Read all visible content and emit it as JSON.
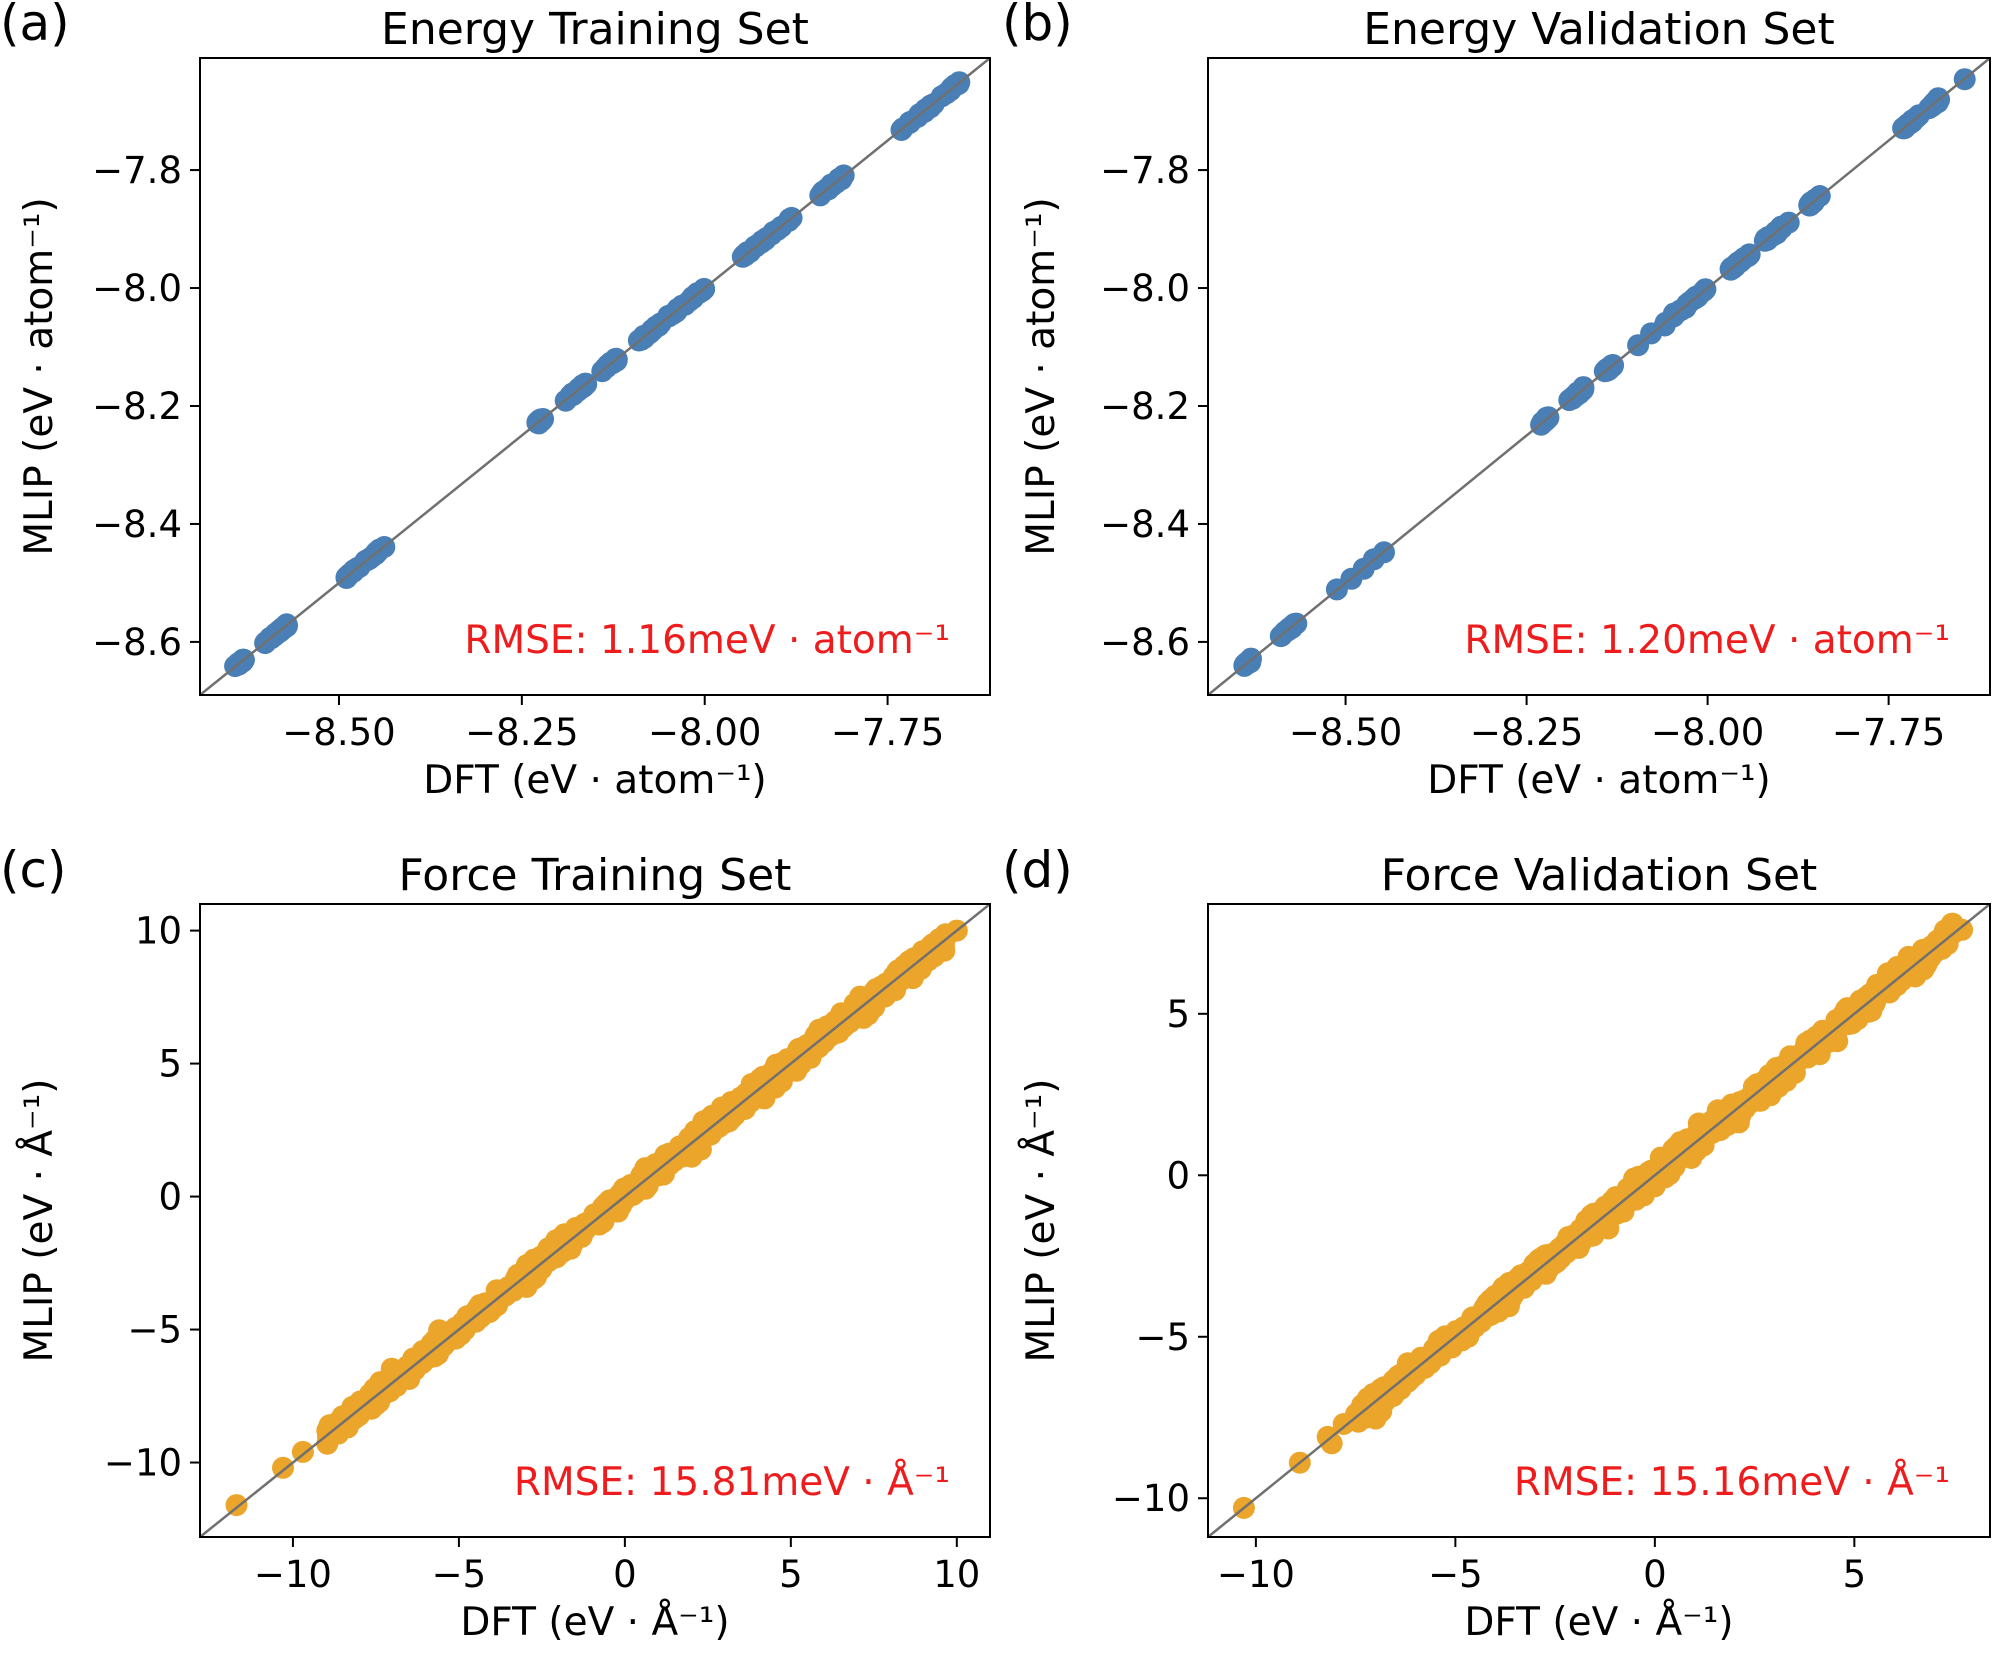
{
  "colors": {
    "energy_points": "#4a7fb5",
    "force_points": "#eba52a",
    "parity_line": "#707070",
    "rmse_text": "#ee1c1c"
  },
  "chart_data": [
    {
      "type": "scatter",
      "letter": "(a)",
      "title": "Energy Training Set",
      "xlabel": "DFT (eV · atom⁻¹)",
      "ylabel": "MLIP (eV · atom⁻¹)",
      "xlim": [
        -8.69,
        -7.61
      ],
      "ylim": [
        -8.69,
        -7.61
      ],
      "xticks": [
        -8.5,
        -8.25,
        -8.0,
        -7.75
      ],
      "xtick_labels": [
        "−8.50",
        "−8.25",
        "−8.00",
        "−7.75"
      ],
      "yticks": [
        -8.6,
        -8.4,
        -8.2,
        -8.0,
        -7.8
      ],
      "ytick_labels": [
        "−8.6",
        "−8.4",
        "−8.2",
        "−8.0",
        "−7.8"
      ],
      "annotation": "RMSE: 1.16meV · atom⁻¹",
      "color": "#4a7fb5",
      "clusters": [
        [
          -8.64,
          -8.63
        ],
        [
          -8.6,
          -8.57
        ],
        [
          -8.49,
          -8.44
        ],
        [
          -8.23,
          -8.22
        ],
        [
          -8.19,
          -8.16
        ],
        [
          -8.14,
          -8.12
        ],
        [
          -8.09,
          -8.06
        ],
        [
          -8.05,
          -8.0
        ],
        [
          -7.95,
          -7.88
        ],
        [
          -7.84,
          -7.81
        ],
        [
          -7.73,
          -7.65
        ]
      ],
      "points": [
        [
          -8.642,
          -8.641
        ],
        [
          -8.636,
          -8.637
        ],
        [
          -8.631,
          -8.63
        ],
        [
          -8.601,
          -8.602
        ],
        [
          -8.594,
          -8.593
        ],
        [
          -8.586,
          -8.587
        ],
        [
          -8.578,
          -8.577
        ],
        [
          -8.571,
          -8.572
        ],
        [
          -8.488,
          -8.489
        ],
        [
          -8.48,
          -8.479
        ],
        [
          -8.472,
          -8.473
        ],
        [
          -8.464,
          -8.463
        ],
        [
          -8.455,
          -8.456
        ],
        [
          -8.446,
          -8.445
        ],
        [
          -8.438,
          -8.439
        ],
        [
          -8.228,
          -8.227
        ],
        [
          -8.221,
          -8.222
        ],
        [
          -8.19,
          -8.191
        ],
        [
          -8.181,
          -8.18
        ],
        [
          -8.172,
          -8.173
        ],
        [
          -8.163,
          -8.162
        ],
        [
          -8.14,
          -8.141
        ],
        [
          -8.131,
          -8.13
        ],
        [
          -8.121,
          -8.122
        ],
        [
          -8.09,
          -8.089
        ],
        [
          -8.081,
          -8.082
        ],
        [
          -8.072,
          -8.071
        ],
        [
          -8.063,
          -8.064
        ],
        [
          -8.049,
          -8.048
        ],
        [
          -8.04,
          -8.041
        ],
        [
          -8.031,
          -8.03
        ],
        [
          -8.021,
          -8.022
        ],
        [
          -8.011,
          -8.01
        ],
        [
          -8.001,
          -8.002
        ],
        [
          -7.948,
          -7.947
        ],
        [
          -7.938,
          -7.939
        ],
        [
          -7.928,
          -7.927
        ],
        [
          -7.917,
          -7.918
        ],
        [
          -7.906,
          -7.905
        ],
        [
          -7.895,
          -7.896
        ],
        [
          -7.884,
          -7.883
        ],
        [
          -7.842,
          -7.843
        ],
        [
          -7.832,
          -7.831
        ],
        [
          -7.821,
          -7.822
        ],
        [
          -7.81,
          -7.809
        ],
        [
          -7.731,
          -7.732
        ],
        [
          -7.72,
          -7.719
        ],
        [
          -7.709,
          -7.71
        ],
        [
          -7.698,
          -7.697
        ],
        [
          -7.687,
          -7.688
        ],
        [
          -7.676,
          -7.675
        ],
        [
          -7.664,
          -7.665
        ],
        [
          -7.652,
          -7.651
        ]
      ]
    },
    {
      "type": "scatter",
      "letter": "(b)",
      "title": "Energy Validation Set",
      "xlabel": "DFT (eV · atom⁻¹)",
      "ylabel": "MLIP (eV · atom⁻¹)",
      "xlim": [
        -8.69,
        -7.61
      ],
      "ylim": [
        -8.69,
        -7.61
      ],
      "xticks": [
        -8.5,
        -8.25,
        -8.0,
        -7.75
      ],
      "xtick_labels": [
        "−8.50",
        "−8.25",
        "−8.00",
        "−7.75"
      ],
      "yticks": [
        -8.6,
        -8.4,
        -8.2,
        -8.0,
        -7.8
      ],
      "ytick_labels": [
        "−8.6",
        "−8.4",
        "−8.2",
        "−8.0",
        "−7.8"
      ],
      "annotation": "RMSE: 1.20meV · atom⁻¹",
      "color": "#4a7fb5",
      "clusters": [
        [
          -8.64,
          -8.63
        ],
        [
          -8.59,
          -8.57
        ],
        [
          -8.23,
          -8.22
        ],
        [
          -8.19,
          -8.17
        ],
        [
          -8.14,
          -8.13
        ],
        [
          -8.06,
          -8.0
        ],
        [
          -7.97,
          -7.94
        ],
        [
          -7.92,
          -7.89
        ],
        [
          -7.86,
          -7.85
        ],
        [
          -7.73,
          -7.71
        ],
        [
          -7.69,
          -7.68
        ]
      ],
      "points": [
        [
          -8.639,
          -8.638
        ],
        [
          -8.632,
          -8.633
        ],
        [
          -8.588,
          -8.589
        ],
        [
          -8.578,
          -8.577
        ],
        [
          -8.568,
          -8.569
        ],
        [
          -8.512,
          -8.511
        ],
        [
          -8.492,
          -8.493
        ],
        [
          -8.475,
          -8.476
        ],
        [
          -8.461,
          -8.46
        ],
        [
          -8.447,
          -8.448
        ],
        [
          -8.228,
          -8.229
        ],
        [
          -8.22,
          -8.219
        ],
        [
          -8.191,
          -8.19
        ],
        [
          -8.182,
          -8.183
        ],
        [
          -8.172,
          -8.171
        ],
        [
          -8.142,
          -8.141
        ],
        [
          -8.132,
          -8.133
        ],
        [
          -8.096,
          -8.097
        ],
        [
          -8.078,
          -8.077
        ],
        [
          -8.058,
          -8.059
        ],
        [
          -8.047,
          -8.046
        ],
        [
          -8.036,
          -8.037
        ],
        [
          -8.025,
          -8.024
        ],
        [
          -8.014,
          -8.015
        ],
        [
          -8.003,
          -8.002
        ],
        [
          -7.968,
          -7.969
        ],
        [
          -7.957,
          -7.956
        ],
        [
          -7.946,
          -7.947
        ],
        [
          -7.921,
          -7.92
        ],
        [
          -7.91,
          -7.911
        ],
        [
          -7.899,
          -7.898
        ],
        [
          -7.888,
          -7.889
        ],
        [
          -7.857,
          -7.858
        ],
        [
          -7.845,
          -7.844
        ],
        [
          -7.73,
          -7.729
        ],
        [
          -7.719,
          -7.72
        ],
        [
          -7.708,
          -7.707
        ],
        [
          -7.694,
          -7.695
        ],
        [
          -7.682,
          -7.681
        ],
        [
          -7.645,
          -7.646
        ]
      ]
    },
    {
      "type": "scatter",
      "letter": "(c)",
      "title": "Force Training Set",
      "xlabel": "DFT (eV · Å⁻¹)",
      "ylabel": "MLIP (eV · Å⁻¹)",
      "xlim": [
        -12.8,
        11.0
      ],
      "ylim": [
        -12.8,
        11.0
      ],
      "xticks": [
        -10,
        -5,
        0,
        5,
        10
      ],
      "xtick_labels": [
        "−10",
        "−5",
        "0",
        "5",
        "10"
      ],
      "yticks": [
        -10,
        -5,
        0,
        5,
        10
      ],
      "ytick_labels": [
        "−10",
        "−5",
        "0",
        "5",
        "10"
      ],
      "annotation": "RMSE: 15.81meV · Å⁻¹",
      "color": "#eba52a",
      "band": [
        -9.0,
        9.7
      ],
      "spread": 0.18,
      "points": [
        [
          -11.7,
          -11.6
        ],
        [
          -10.3,
          -10.2
        ],
        [
          -9.7,
          -9.6
        ],
        [
          -8.9,
          -8.6
        ],
        [
          -8.4,
          -8.5
        ],
        [
          9.6,
          9.5
        ],
        [
          10.0,
          10.0
        ]
      ]
    },
    {
      "type": "scatter",
      "letter": "(d)",
      "title": "Force Validation Set",
      "xlabel": "DFT (eV · Å⁻¹)",
      "ylabel": "MLIP (eV · Å⁻¹)",
      "xlim": [
        -11.2,
        8.4
      ],
      "ylim": [
        -11.2,
        8.4
      ],
      "xticks": [
        -10,
        -5,
        0,
        5
      ],
      "xtick_labels": [
        "−10",
        "−5",
        "0",
        "5"
      ],
      "yticks": [
        -10,
        -5,
        0,
        5
      ],
      "ytick_labels": [
        "−10",
        "−5",
        "0",
        "5"
      ],
      "annotation": "RMSE: 15.16meV · Å⁻¹",
      "color": "#eba52a",
      "band": [
        -7.5,
        7.5
      ],
      "spread": 0.16,
      "points": [
        [
          -10.3,
          -10.3
        ],
        [
          -8.9,
          -8.9
        ],
        [
          -8.2,
          -8.1
        ],
        [
          -8.1,
          -8.3
        ],
        [
          -7.8,
          -7.7
        ],
        [
          7.7,
          7.6
        ],
        [
          7.5,
          7.7
        ]
      ]
    }
  ]
}
